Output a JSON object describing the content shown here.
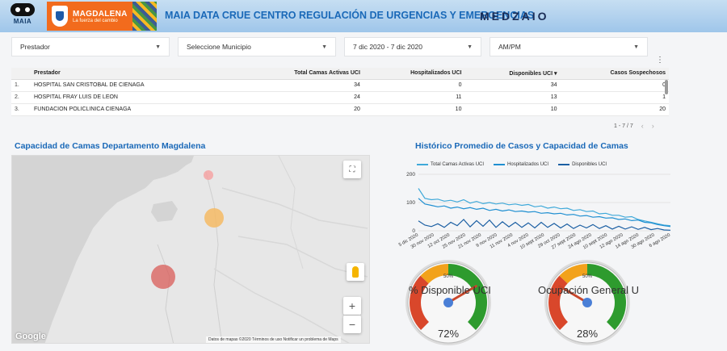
{
  "header": {
    "maia_logo_text": "MAIA",
    "magdalena_logo_name": "MAGDALENA",
    "magdalena_logo_tagline": "La fuerza del cambio",
    "title": "MAIA DATA CRUE CENTRO REGULACIÓN DE URGENCIAS Y EMERGENCIAS",
    "brand": "MEDZAIO"
  },
  "filters": [
    {
      "label": "Prestador"
    },
    {
      "label": "Seleccione Municipio"
    },
    {
      "label": "7 dic 2020 - 7 dic 2020"
    },
    {
      "label": "AM/PM"
    }
  ],
  "table": {
    "columns": [
      "Prestador",
      "Total Camas Activas UCI",
      "Hospitalizados UCI",
      "Disponibles UCI ▾",
      "Casos Sospechosos"
    ],
    "rows": [
      {
        "idx": "1.",
        "prestador": "HOSPITAL SAN CRISTOBAL DE CIENAGA",
        "total": "34",
        "hosp": "0",
        "disp": "34",
        "casos": "0"
      },
      {
        "idx": "2.",
        "prestador": "HOSPITAL FRAY LUIS DE LEON",
        "total": "24",
        "hosp": "11",
        "disp": "13",
        "casos": "1"
      },
      {
        "idx": "3.",
        "prestador": "FUNDACION POLICLINICA CIENAGA",
        "total": "20",
        "hosp": "10",
        "disp": "10",
        "casos": "20"
      }
    ],
    "pagination": "1 - 7 / 7"
  },
  "map_section": {
    "title": "Capacidad de Camas Departamento Magdalena",
    "google_label": "Google",
    "attribution": "Datos de mapas ©2020    Términos de uso    Notificar un problema de Maps",
    "zoom_in": "+",
    "zoom_out": "−",
    "fullscreen_icon": "fullscreen-icon",
    "bubble_colors": {
      "small": "#f4a3a3",
      "medium": "#f6b85c",
      "large": "#d9534f"
    }
  },
  "chart_section": {
    "title": "Histórico Promedio de Casos y Capacidad de Camas"
  },
  "chart_data": [
    {
      "type": "line",
      "title": "Histórico Promedio de Casos y Capacidad de Camas",
      "legend": [
        "Total Camas Activas UCI",
        "Hospitalizados UCI",
        "Disponibles UCI"
      ],
      "legend_position": "top",
      "colors": [
        "#3fa9d9",
        "#1f8fd1",
        "#1b5fa3"
      ],
      "y_ticks": [
        "200",
        "100",
        "0"
      ],
      "ylim": [
        0,
        200
      ],
      "x_ticks": [
        "5 dic 2020",
        "30 nov 2020",
        "12 oct 2020",
        "25 nov 2020",
        "21 nov 2020",
        "9 nov 2020",
        "11 nov 2020",
        "4 nov 2020",
        "10 sept 2020",
        "29 oct 2020",
        "27 sept 2020",
        "24 ago 2020",
        "10 sept 2020",
        "12 ago 2020",
        "14 ago 2020",
        "30 ago 2020",
        "6 ago 2020"
      ],
      "series": [
        {
          "name": "Total Camas Activas UCI",
          "values": [
            150,
            115,
            110,
            112,
            105,
            108,
            102,
            110,
            98,
            104,
            96,
            100,
            95,
            98,
            92,
            95,
            90,
            93,
            85,
            88,
            80,
            84,
            78,
            80,
            72,
            75,
            68,
            70,
            60,
            62,
            55,
            55,
            48,
            50,
            40,
            35,
            30,
            25,
            20,
            18
          ]
        },
        {
          "name": "Hospitalizados UCI",
          "values": [
            115,
            95,
            90,
            85,
            88,
            80,
            84,
            78,
            82,
            76,
            80,
            72,
            76,
            70,
            74,
            68,
            70,
            66,
            68,
            62,
            64,
            60,
            62,
            56,
            58,
            52,
            54,
            48,
            50,
            45,
            46,
            40,
            42,
            36,
            38,
            30,
            28,
            22,
            18,
            15
          ]
        },
        {
          "name": "Disponibles UCI",
          "values": [
            35,
            20,
            15,
            25,
            12,
            30,
            18,
            40,
            14,
            36,
            16,
            38,
            12,
            32,
            14,
            30,
            12,
            28,
            10,
            30,
            12,
            26,
            10,
            24,
            8,
            20,
            10,
            22,
            8,
            18,
            6,
            16,
            6,
            14,
            5,
            12,
            4,
            8,
            3,
            2
          ]
        }
      ]
    },
    {
      "type": "gauge",
      "label": "% Disponible UCI",
      "value": 72,
      "value_label": "72%",
      "mid_tick": "50%",
      "max": 100
    },
    {
      "type": "gauge",
      "label": "Ocupación General U",
      "value": 28,
      "value_label": "28%",
      "mid_tick": "50%",
      "max": 100
    }
  ]
}
